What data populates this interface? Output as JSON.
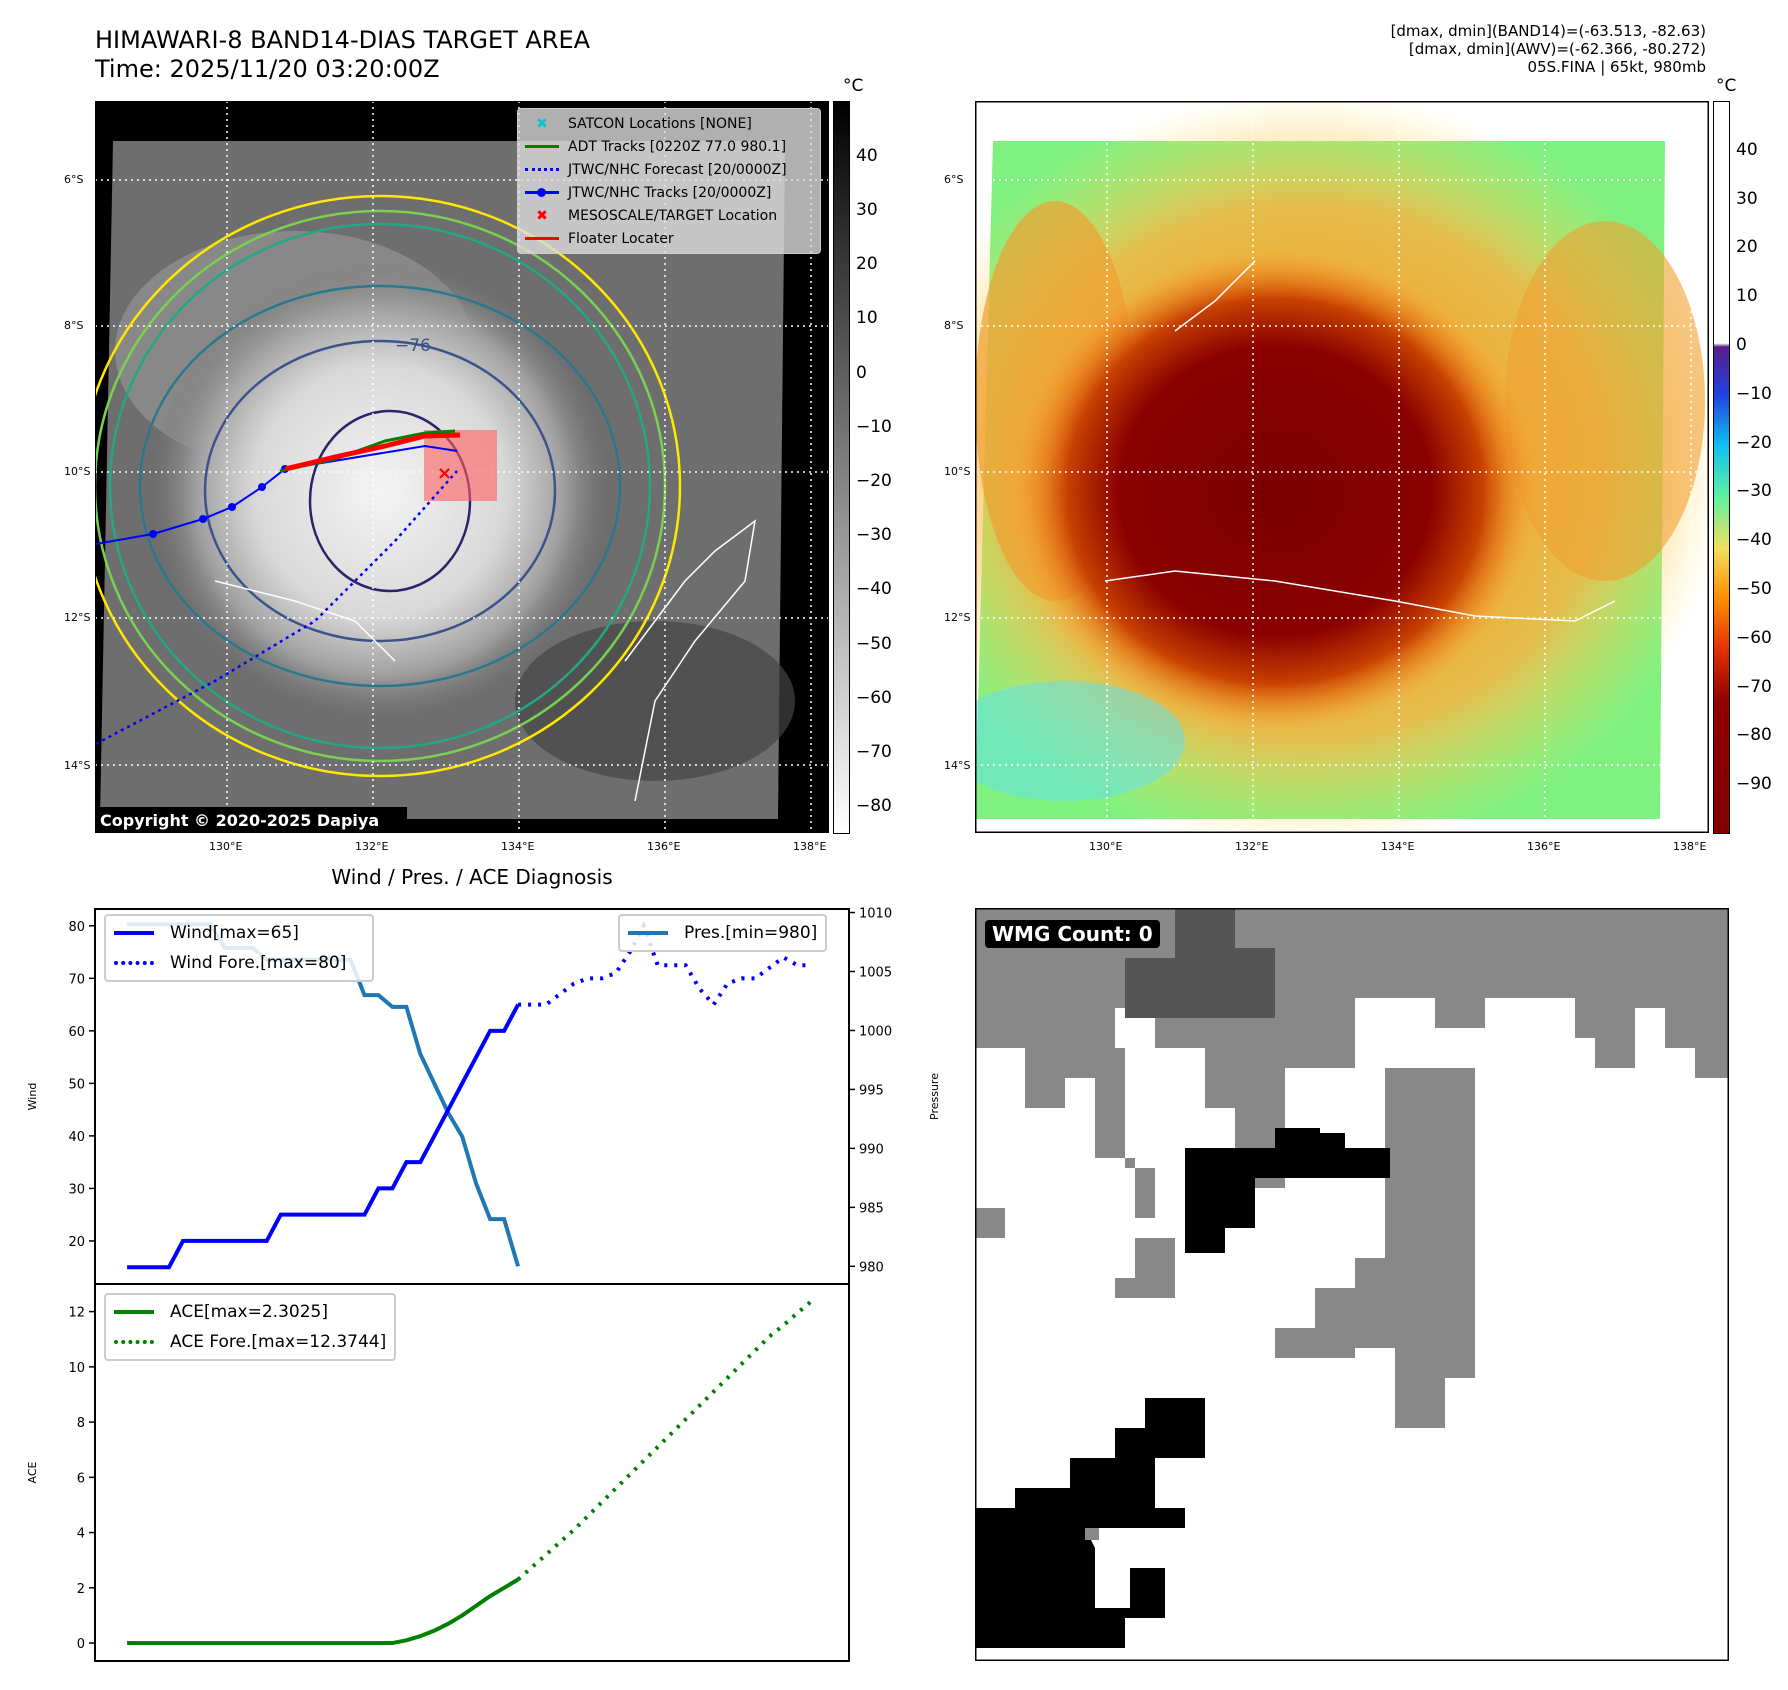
{
  "header": {
    "title": "HIMAWARI-8 BAND14-DIAS TARGET AREA",
    "time": "Time: 2025/11/20 03:20:00Z",
    "info": [
      "[dmax, dmin](BAND14)=(-63.513, -82.63)",
      "[dmax, dmin](AWV)=(-62.366, -80.272)",
      "05S.FINA | 65kt, 980mb"
    ]
  },
  "map": {
    "lat_labels": [
      "6°S",
      "8°S",
      "10°S",
      "12°S",
      "14°S"
    ],
    "lon_labels": [
      "130°E",
      "132°E",
      "134°E",
      "136°E",
      "138°E"
    ],
    "copyright": "Copyright © 2020-2025 Dapiya",
    "contour_label": "−76",
    "legend": [
      "SATCON Locations [NONE]",
      "ADT Tracks [0220Z 77.0 980.1]",
      "JTWC/NHC Forecast [20/0000Z]",
      "JTWC/NHC Tracks [20/0000Z]",
      "MESOSCALE/TARGET Location",
      "Floater Locater"
    ]
  },
  "colorbar_gray": {
    "unit": "°C",
    "ticks": [
      "40",
      "30",
      "20",
      "10",
      "0",
      "−10",
      "−20",
      "−30",
      "−40",
      "−50",
      "−60",
      "−70",
      "−80"
    ]
  },
  "colorbar_color": {
    "unit": "°C",
    "ticks": [
      "40",
      "30",
      "20",
      "10",
      "0",
      "−10",
      "−20",
      "−30",
      "−40",
      "−50",
      "−60",
      "−70",
      "−80",
      "−90"
    ]
  },
  "wmg": {
    "label": "WMG Count: 0"
  },
  "colors": {
    "wind": "#0000ff",
    "pres": "#1f77b4",
    "ace": "#008000"
  },
  "chart_data": [
    {
      "type": "line",
      "title": "Wind / Pres. / ACE Diagnosis",
      "ylabel": "Wind",
      "y2label": "Pressure",
      "ylim": [
        11.8,
        83.2
      ],
      "y2lim": [
        978.5,
        1010.3
      ],
      "yticks": [
        "20",
        "30",
        "40",
        "50",
        "60",
        "70",
        "80"
      ],
      "y2ticks": [
        "980",
        "985",
        "990",
        "995",
        "1000",
        "1005",
        "1010"
      ],
      "series": [
        {
          "name": "Wind[max=65]",
          "x_start": 0,
          "values": [
            15,
            15,
            15,
            15,
            20,
            20,
            20,
            20,
            20,
            20,
            20,
            25,
            25,
            25,
            25,
            25,
            25,
            25,
            30,
            30,
            35,
            35,
            40,
            45,
            50,
            55,
            60,
            60,
            65
          ]
        },
        {
          "name": "Wind Fore.[max=80]",
          "x_start": 28,
          "values": [
            65,
            65,
            65,
            67,
            69,
            70,
            70,
            71,
            75,
            80,
            72.5,
            72.5,
            72.5,
            68,
            65,
            69,
            70,
            70,
            72,
            74,
            72.5,
            72.5
          ]
        },
        {
          "name": "Pres.[min=980]",
          "axis": "right",
          "x_start": 0,
          "values": [
            1009,
            1009,
            1009,
            1009,
            1009,
            1009,
            1009,
            1007,
            1007,
            1007,
            1006,
            1006,
            1006,
            1006,
            1006,
            1006,
            1006,
            1003,
            1003,
            1002,
            1002,
            998,
            995.5,
            993,
            991,
            987,
            984,
            984,
            980
          ]
        }
      ]
    },
    {
      "type": "line",
      "ylabel": "ACE",
      "ylim": [
        -0.65,
        13
      ],
      "yticks": [
        "0",
        "2",
        "4",
        "6",
        "8",
        "10",
        "12"
      ],
      "series": [
        {
          "name": "ACE[max=2.3025]",
          "x_start": 0,
          "values": [
            0,
            0,
            0,
            0,
            0,
            0,
            0,
            0,
            0,
            0,
            0,
            0,
            0,
            0,
            0,
            0,
            0,
            0,
            0,
            0,
            0.1,
            0.25,
            0.45,
            0.7,
            1.0,
            1.35,
            1.7,
            2.0,
            2.3
          ]
        },
        {
          "name": "ACE Fore.[max=12.3744]",
          "x_start": 28,
          "values": [
            2.3,
            2.75,
            3.2,
            3.65,
            4.1,
            4.6,
            5.1,
            5.6,
            6.1,
            6.6,
            7.1,
            7.6,
            8.1,
            8.6,
            9.1,
            9.6,
            10.1,
            10.6,
            11.1,
            11.5,
            11.95,
            12.37
          ]
        }
      ]
    }
  ]
}
